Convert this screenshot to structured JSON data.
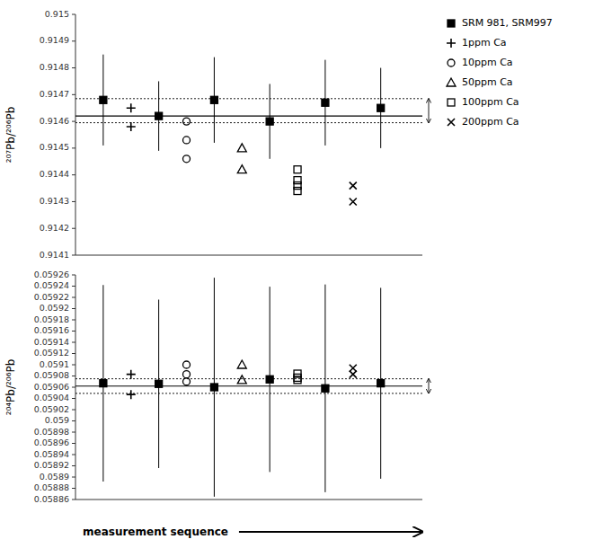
{
  "chart_data": [
    {
      "type": "scatter",
      "ylabel": "²⁰⁷Pb/²⁰⁶Pb",
      "color": "#000000",
      "xlim": [
        0,
        12.5
      ],
      "ylim": [
        0.9141,
        0.915
      ],
      "yticks": [
        0.9141,
        0.9142,
        0.9143,
        0.9144,
        0.9145,
        0.9146,
        0.9147,
        0.9148,
        0.9149,
        0.915
      ],
      "tick_labels": "y",
      "legend": "right",
      "ref_mean": 0.91462,
      "ref_sd_upper": 0.914685,
      "ref_sd_lower": 0.914595,
      "series": [
        {
          "name": "SRM 981, SRM997",
          "marker": "square-filled",
          "x": [
            1,
            3,
            5,
            7,
            9,
            11
          ],
          "values": [
            0.91468,
            0.91462,
            0.91468,
            0.9146,
            0.91467,
            0.91465
          ],
          "errors": [
            0.00017,
            0.00013,
            0.00016,
            0.00014,
            0.00016,
            0.00015
          ]
        },
        {
          "name": "1ppm Ca",
          "marker": "plus",
          "x": [
            2,
            2
          ],
          "values": [
            0.91465,
            0.91458
          ]
        },
        {
          "name": "10ppm Ca",
          "marker": "circle-open",
          "x": [
            4,
            4,
            4
          ],
          "values": [
            0.9146,
            0.91453,
            0.91446
          ]
        },
        {
          "name": "50ppm Ca",
          "marker": "triangle-open",
          "x": [
            6,
            6
          ],
          "values": [
            0.9145,
            0.91442
          ]
        },
        {
          "name": "100ppm Ca",
          "marker": "square-open",
          "x": [
            8,
            8,
            8,
            8
          ],
          "values": [
            0.91442,
            0.91438,
            0.91436,
            0.91434
          ]
        },
        {
          "name": "200ppm Ca",
          "marker": "cross",
          "x": [
            10,
            10
          ],
          "values": [
            0.91436,
            0.9143
          ]
        }
      ]
    },
    {
      "type": "scatter",
      "ylabel": "²⁰⁴Pb/²⁰⁶Pb",
      "xlabel": "measurement sequence",
      "color": "#000000",
      "xlim": [
        0,
        12.5
      ],
      "ylim": [
        0.05886,
        0.05926
      ],
      "yticks": [
        0.05886,
        0.05888,
        0.0589,
        0.05892,
        0.05894,
        0.05896,
        0.05898,
        0.059,
        0.05902,
        0.05904,
        0.05906,
        0.05908,
        0.0591,
        0.05912,
        0.05914,
        0.05916,
        0.05918,
        0.0592,
        0.05922,
        0.05924,
        0.05926
      ],
      "tick_labels": "y",
      "ref_mean": 0.059062,
      "ref_sd_upper": 0.059075,
      "ref_sd_lower": 0.059049,
      "series": [
        {
          "marker": "square-filled",
          "x": [
            1,
            3,
            5,
            7,
            9,
            11
          ],
          "values": [
            0.059067,
            0.059066,
            0.05906,
            0.059074,
            0.059058,
            0.059067
          ],
          "errors": [
            0.000175,
            0.00015,
            0.000195,
            0.000165,
            0.000185,
            0.00017
          ]
        },
        {
          "marker": "plus",
          "x": [
            2,
            2
          ],
          "values": [
            0.059083,
            0.059047
          ]
        },
        {
          "marker": "circle-open",
          "x": [
            4,
            4,
            4
          ],
          "values": [
            0.0591,
            0.059083,
            0.05907
          ]
        },
        {
          "marker": "triangle-open",
          "x": [
            6,
            6
          ],
          "values": [
            0.059073,
            0.0591
          ]
        },
        {
          "marker": "square-open",
          "x": [
            8,
            8,
            8
          ],
          "values": [
            0.059084,
            0.059077,
            0.059073
          ]
        },
        {
          "marker": "cross",
          "x": [
            10,
            10
          ],
          "values": [
            0.059083,
            0.059094
          ]
        }
      ]
    }
  ]
}
